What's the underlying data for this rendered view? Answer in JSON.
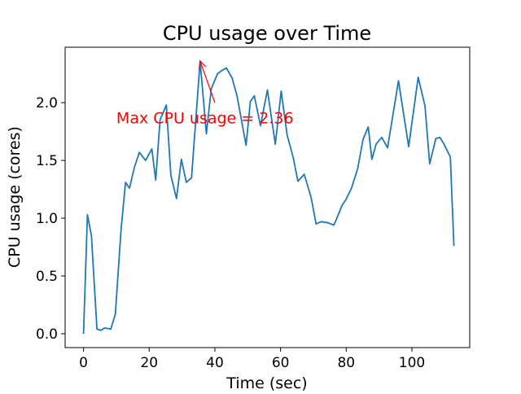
{
  "chart_data": {
    "type": "line",
    "title": "CPU usage over Time",
    "xlabel": "Time (sec)",
    "ylabel": "CPU usage (cores)",
    "xlim": [
      -5.6,
      117.6
    ],
    "ylim": [
      -0.12,
      2.48
    ],
    "xticks": [
      0,
      20,
      40,
      60,
      80,
      100
    ],
    "xtick_labels": [
      "0",
      "20",
      "40",
      "60",
      "80",
      "100"
    ],
    "yticks": [
      0.0,
      0.5,
      1.0,
      1.5,
      2.0
    ],
    "ytick_labels": [
      "0.0",
      "0.5",
      "1.0",
      "1.5",
      "2.0"
    ],
    "grid": false,
    "series": [
      {
        "name": "CPU usage",
        "color": "#1f77b4",
        "x": [
          0,
          1.2,
          2.4,
          4.1,
          5.3,
          6.4,
          8.3,
          9.7,
          11.4,
          12.8,
          14,
          15.5,
          17,
          18.9,
          20.8,
          22,
          23.3,
          25.2,
          26.6,
          28.3,
          29.8,
          31.3,
          32.9,
          35.5,
          37.4,
          38.9,
          40.8,
          42.2,
          43.5,
          45.3,
          46.8,
          49.5,
          50.8,
          52,
          53.9,
          56,
          58.4,
          60.2,
          62,
          63.8,
          65.3,
          67.2,
          69.3,
          70.8,
          72.4,
          74.5,
          76.2,
          77,
          78.7,
          79.9,
          81.6,
          83.5,
          85.1,
          86.7,
          87.8,
          89.1,
          90.8,
          92.6,
          95.9,
          99,
          101.9,
          104,
          105.4,
          107.3,
          108.5,
          109.8,
          111.7,
          112.8
        ],
        "y": [
          0,
          1.03,
          0.85,
          0.04,
          0.03,
          0.05,
          0.04,
          0.17,
          0.89,
          1.31,
          1.26,
          1.44,
          1.57,
          1.5,
          1.6,
          1.33,
          1.85,
          1.98,
          1.37,
          1.17,
          1.51,
          1.31,
          1.35,
          2.36,
          1.73,
          2.12,
          2.25,
          2.28,
          2.3,
          2.21,
          2.05,
          1.63,
          2.01,
          2.06,
          1.8,
          2.11,
          1.64,
          2.1,
          1.72,
          1.53,
          1.32,
          1.38,
          1.18,
          0.95,
          0.97,
          0.96,
          0.94,
          0.99,
          1.11,
          1.16,
          1.26,
          1.43,
          1.68,
          1.79,
          1.51,
          1.64,
          1.7,
          1.61,
          2.19,
          1.62,
          2.22,
          1.97,
          1.47,
          1.69,
          1.7,
          1.64,
          1.53,
          0.76
        ]
      }
    ],
    "annotation": {
      "text": "Max CPU usage = 2.36",
      "color": "#ff0000",
      "xy": [
        35.5,
        2.36
      ],
      "xytext": [
        10,
        1.87
      ],
      "arrow_tail": [
        40,
        2.0
      ]
    }
  }
}
